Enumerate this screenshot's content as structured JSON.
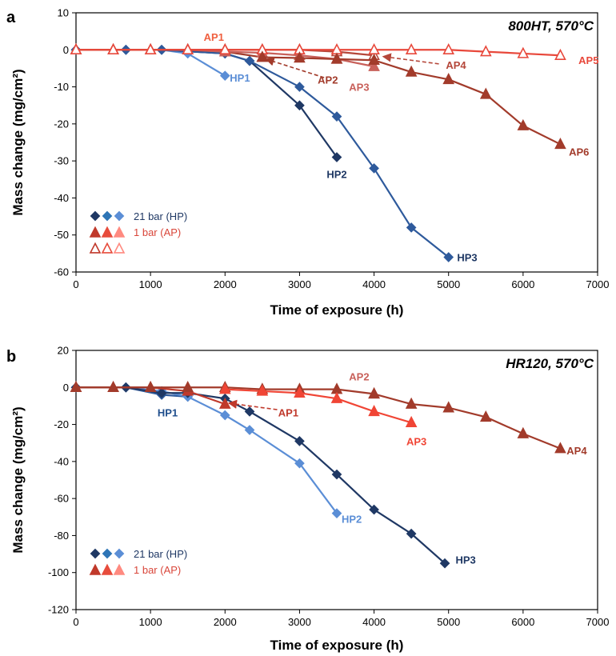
{
  "chart_data": [
    {
      "type": "line",
      "panel_letter": "a",
      "title": "800HT, 570°C",
      "xlabel": "Time of exposure (h)",
      "ylabel": "Mass change (mg/cm²)",
      "xlim": [
        0,
        7000
      ],
      "ylim": [
        -60,
        10
      ],
      "xticks": [
        0,
        1000,
        2000,
        3000,
        4000,
        5000,
        6000,
        7000
      ],
      "yticks": [
        10,
        0,
        -10,
        -20,
        -30,
        -40,
        -50,
        -60
      ],
      "grid": false,
      "legend": {
        "position": "bottom-left",
        "entries": [
          {
            "label": "21 bar (HP)",
            "marker": "diamond",
            "colors": [
              "#1f3864",
              "#2e75b6",
              "#5b8ed6"
            ],
            "filled": true,
            "text_color": "#1f3864"
          },
          {
            "label": "1 bar (AP)",
            "marker": "triangle",
            "colors": [
              "#c0392b",
              "#e74c3c",
              "#ff8a80"
            ],
            "filled": true,
            "text_color": "#d9463a"
          },
          {
            "label": "",
            "marker": "triangle",
            "colors": [
              "#c0392b",
              "#e74c3c",
              "#ff8a80"
            ],
            "filled": false
          }
        ]
      },
      "series": [
        {
          "name": "HP1",
          "color": "#5b8ed6",
          "marker": "diamond",
          "filled": true,
          "x": [
            0,
            670,
            1150,
            1500,
            2000
          ],
          "y": [
            0,
            0,
            0,
            -1,
            -7
          ],
          "label_at": [
            2200,
            -7.5
          ],
          "label_color": "#5b8ed6"
        },
        {
          "name": "HP2",
          "color": "#1f3864",
          "marker": "diamond",
          "filled": true,
          "x": [
            0,
            670,
            1150,
            2000,
            2330,
            3000,
            3500
          ],
          "y": [
            0,
            0,
            0,
            -1,
            -3,
            -15,
            -29
          ],
          "label_at": [
            3500,
            -33.5
          ],
          "label_color": "#1f3864"
        },
        {
          "name": "HP3",
          "color": "#2e5a9c",
          "marker": "diamond",
          "filled": true,
          "x": [
            0,
            670,
            1150,
            2000,
            2330,
            3000,
            3500,
            4000,
            4500,
            5000
          ],
          "y": [
            0,
            0,
            0,
            -1,
            -3,
            -10,
            -18,
            -32,
            -48,
            -56
          ],
          "label_at": [
            5250,
            -56
          ],
          "label_color": "#1f3864"
        },
        {
          "name": "AP1",
          "color": "#f08080",
          "marker": "triangle",
          "filled": true,
          "x": [
            0,
            500,
            1000,
            1500,
            2000
          ],
          "y": [
            0,
            0,
            0,
            0,
            0
          ],
          "label_at": [
            1850,
            3.5
          ],
          "label_color": "#f06040"
        },
        {
          "name": "AP2",
          "color": "#a23b2b",
          "marker": "triangle",
          "filled": true,
          "x": [
            0,
            500,
            1000,
            1500,
            2000,
            2500
          ],
          "y": [
            0,
            0,
            0,
            0,
            -0.5,
            -2
          ],
          "label_at": [
            3380,
            -8
          ],
          "label_color": "#a23b2b"
        },
        {
          "name": "AP3",
          "color": "#c8605a",
          "marker": "triangle",
          "filled": true,
          "x": [
            0,
            500,
            1000,
            1500,
            2000,
            2500,
            3000,
            3500,
            4000
          ],
          "y": [
            0,
            0,
            0,
            0,
            -0.5,
            -0.8,
            -1.5,
            -2.5,
            -4.5
          ],
          "label_at": [
            3800,
            -10
          ],
          "label_color": "#c8605a"
        },
        {
          "name": "AP4",
          "color": "#b5473a",
          "marker": "triangle",
          "filled": false,
          "x": [
            0,
            500,
            1000,
            1500,
            2000,
            2500,
            3000,
            3500,
            4000
          ],
          "y": [
            0,
            0,
            0,
            0,
            0,
            0,
            0,
            -0.5,
            -1.5
          ],
          "label_at": [
            5100,
            -4
          ],
          "label_color": "#b5473a"
        },
        {
          "name": "AP5",
          "color": "#e8483b",
          "marker": "triangle",
          "filled": false,
          "x": [
            0,
            500,
            1000,
            1500,
            2000,
            2500,
            3000,
            3500,
            4000,
            4500,
            5000,
            5500,
            6000,
            6500
          ],
          "y": [
            0,
            0,
            0,
            0,
            0,
            0,
            0,
            0,
            0,
            0,
            0,
            -0.5,
            -1,
            -1.5
          ],
          "label_at": [
            6880,
            -2.8
          ],
          "label_color": "#e8483b"
        },
        {
          "name": "AP6",
          "color": "#a23b2b",
          "marker": "triangle",
          "filled": true,
          "x": [
            2500,
            3000,
            3500,
            4000,
            4500,
            5000,
            5500,
            6000,
            6500
          ],
          "y": [
            -2,
            -2.2,
            -2.5,
            -2.8,
            -6,
            -8,
            -12,
            -20.5,
            -25.5
          ],
          "label_at": [
            6750,
            -27.5
          ],
          "label_color": "#a23b2b"
        }
      ],
      "arrows": [
        {
          "from": [
            3330,
            -7.5
          ],
          "to": [
            2550,
            -2.5
          ],
          "color": "#a23b2b"
        },
        {
          "from": [
            4870,
            -3.8
          ],
          "to": [
            4120,
            -1.8
          ],
          "color": "#b5473a"
        }
      ]
    },
    {
      "type": "line",
      "panel_letter": "b",
      "title": "HR120, 570°C",
      "xlabel": "Time of exposure (h)",
      "ylabel": "Mass change (mg/cm²)",
      "xlim": [
        0,
        7000
      ],
      "ylim": [
        -120,
        20
      ],
      "xticks": [
        0,
        1000,
        2000,
        3000,
        4000,
        5000,
        6000,
        7000
      ],
      "yticks": [
        20,
        0,
        -20,
        -40,
        -60,
        -80,
        -100,
        -120
      ],
      "grid": false,
      "legend": {
        "position": "bottom-left",
        "entries": [
          {
            "label": "21 bar (HP)",
            "marker": "diamond",
            "colors": [
              "#1f3864",
              "#2e75b6",
              "#5b8ed6"
            ],
            "filled": true,
            "text_color": "#1f3864"
          },
          {
            "label": "1 bar (AP)",
            "marker": "triangle",
            "colors": [
              "#c0392b",
              "#e74c3c",
              "#ff8a80"
            ],
            "filled": true,
            "text_color": "#d9463a"
          }
        ]
      },
      "series": [
        {
          "name": "HP1",
          "color": "#2e5a9c",
          "marker": "diamond",
          "filled": true,
          "x": [
            0,
            670,
            1150,
            1500
          ],
          "y": [
            0,
            0,
            -4,
            -5
          ],
          "label_at": [
            1230,
            -13.5
          ],
          "label_color": "#1f4e8c"
        },
        {
          "name": "HP2",
          "color": "#5b8ed6",
          "marker": "diamond",
          "filled": true,
          "x": [
            0,
            670,
            1150,
            1500,
            2000,
            2330,
            3000,
            3500
          ],
          "y": [
            0,
            0,
            -2,
            -5,
            -15,
            -23,
            -41,
            -68
          ],
          "label_at": [
            3700,
            -71
          ],
          "label_color": "#5b8ed6"
        },
        {
          "name": "HP3",
          "color": "#1f3864",
          "marker": "diamond",
          "filled": true,
          "x": [
            0,
            670,
            1150,
            1500,
            2000,
            2330,
            3000,
            3500,
            4000,
            4500,
            4950
          ],
          "y": [
            0,
            0,
            -3,
            -3,
            -6,
            -13,
            -29,
            -47,
            -66,
            -79,
            -95
          ],
          "label_at": [
            5230,
            -93
          ],
          "label_color": "#1f3864"
        },
        {
          "name": "AP1",
          "color": "#c0392b",
          "marker": "triangle",
          "filled": true,
          "x": [
            0,
            500,
            1000,
            1500,
            2000
          ],
          "y": [
            0,
            0,
            0,
            -2,
            -9
          ],
          "label_at": [
            2850,
            -13.5
          ],
          "label_color": "#c0392b"
        },
        {
          "name": "AP2",
          "color": "#a23b2b",
          "marker": "triangle",
          "filled": true,
          "x": [
            0,
            500,
            1000,
            1500,
            2000,
            2500,
            3000,
            3500,
            4000
          ],
          "y": [
            0,
            0,
            0,
            0,
            0,
            -1,
            -1,
            -1,
            -3.5
          ],
          "label_at": [
            3800,
            6
          ],
          "label_color": "#c8605a"
        },
        {
          "name": "AP3",
          "color": "#f04535",
          "marker": "triangle",
          "filled": true,
          "x": [
            2000,
            2500,
            3000,
            3500,
            4000,
            4500
          ],
          "y": [
            -1,
            -2,
            -3,
            -6,
            -13,
            -19
          ],
          "label_at": [
            4570,
            -29
          ],
          "label_color": "#f04535"
        },
        {
          "name": "AP4",
          "color": "#a23b2b",
          "marker": "triangle",
          "filled": true,
          "x": [
            4000,
            4500,
            5000,
            5500,
            6000,
            6500
          ],
          "y": [
            -3.5,
            -9,
            -11,
            -16,
            -25,
            -33
          ],
          "label_at": [
            6720,
            -34
          ],
          "label_color": "#a23b2b"
        }
      ],
      "arrows": [
        {
          "from": [
            2700,
            -12
          ],
          "to": [
            2050,
            -8.5
          ],
          "color": "#c0392b"
        }
      ]
    }
  ]
}
